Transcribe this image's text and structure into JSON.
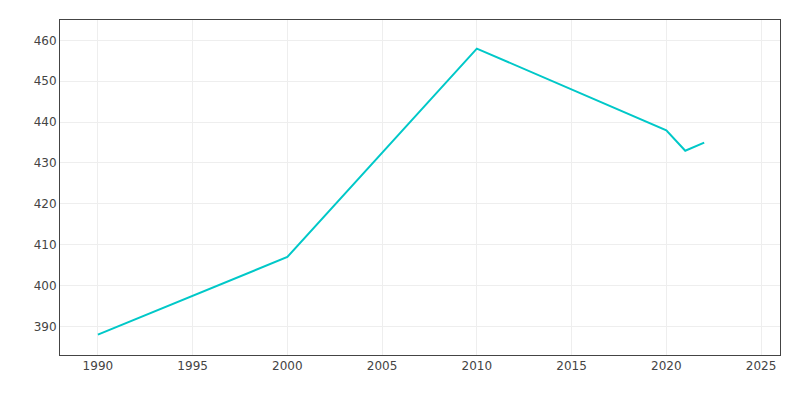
{
  "chart_data": {
    "type": "line",
    "x": [
      1990,
      2000,
      2010,
      2020,
      2021,
      2022
    ],
    "values": [
      388,
      407,
      458,
      438,
      433,
      435
    ],
    "color": "#00C8C8",
    "xlim": [
      1988,
      2026
    ],
    "ylim": [
      383,
      465
    ],
    "xticks": [
      1990,
      1995,
      2000,
      2005,
      2010,
      2015,
      2020,
      2025
    ],
    "yticks": [
      390,
      400,
      410,
      420,
      430,
      440,
      450,
      460
    ],
    "grid": true
  }
}
